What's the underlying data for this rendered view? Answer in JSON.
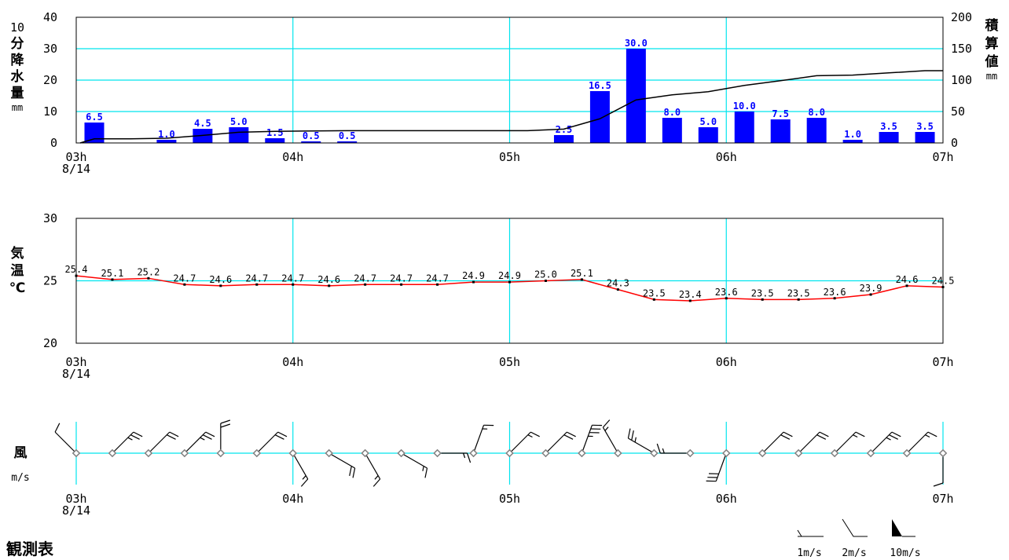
{
  "footer_title": "観測表",
  "chart_data": [
    {
      "type": "bar",
      "ylabel": "10分降水量mm",
      "ylabel_chars": [
        "10",
        "分",
        "降",
        "水",
        "量",
        "mm"
      ],
      "y2label": "積算値mm",
      "y2label_chars": [
        "積",
        "算",
        "値",
        "mm"
      ],
      "ylim": [
        0,
        40
      ],
      "y2lim": [
        0,
        200
      ],
      "yticks": [
        "0",
        "10",
        "20",
        "30",
        "40"
      ],
      "y2ticks": [
        "0",
        "50",
        "100",
        "150",
        "200"
      ],
      "xticks": [
        "03h",
        "04h",
        "05h",
        "06h",
        "07h"
      ],
      "x_date": "8/14",
      "x_minutes": [
        0,
        10,
        20,
        30,
        40,
        50,
        60,
        70,
        80,
        90,
        100,
        110,
        120,
        130,
        140,
        150,
        160,
        170,
        180,
        190,
        200,
        210,
        220,
        230
      ],
      "values": [
        6.5,
        0,
        1.0,
        4.5,
        5.0,
        1.5,
        0.5,
        0.5,
        0,
        0,
        0,
        0,
        0,
        2.5,
        16.5,
        30.0,
        8.0,
        5.0,
        10.0,
        7.5,
        8.0,
        1.0,
        3.5,
        3.5
      ],
      "value_labels": [
        "6.5",
        "",
        "1.0",
        "4.5",
        "5.0",
        "1.5",
        "0.5",
        "0.5",
        "",
        "",
        "",
        "",
        "",
        "2.5",
        "16.5",
        "30.0",
        "8.0",
        "5.0",
        "10.0",
        "7.5",
        "8.0",
        "1.0",
        "3.5",
        "3.5"
      ],
      "cumulative": [
        6.5,
        6.5,
        7.5,
        12.0,
        17.0,
        18.5,
        19.0,
        19.5,
        19.5,
        19.5,
        19.5,
        19.5,
        19.5,
        22.0,
        38.5,
        68.5,
        76.5,
        81.5,
        91.5,
        99.0,
        107.0,
        108.0,
        111.5,
        115.0
      ],
      "colors": {
        "bar": "#0000ff",
        "label": "#0000ff",
        "cumulative": "#000000",
        "grid": "#00e5ee"
      }
    },
    {
      "type": "line",
      "ylabel": "気温℃",
      "ylabel_chars": [
        "気",
        "温",
        "℃"
      ],
      "ylim": [
        20,
        30
      ],
      "yticks": [
        "20",
        "25",
        "30"
      ],
      "xticks": [
        "03h",
        "04h",
        "05h",
        "06h",
        "07h"
      ],
      "x_date": "8/14",
      "x_minutes": [
        0,
        10,
        20,
        30,
        40,
        50,
        60,
        70,
        80,
        90,
        100,
        110,
        120,
        130,
        140,
        150,
        160,
        170,
        180,
        190,
        200,
        210,
        220,
        230,
        240
      ],
      "values": [
        25.4,
        25.1,
        25.2,
        24.7,
        24.6,
        24.7,
        24.7,
        24.6,
        24.7,
        24.7,
        24.7,
        24.9,
        24.9,
        25.0,
        25.1,
        24.3,
        23.5,
        23.4,
        23.6,
        23.5,
        23.5,
        23.6,
        23.9,
        24.6,
        24.5
      ],
      "value_labels": [
        "25.4",
        "25.1",
        "25.2",
        "24.7",
        "24.6",
        "24.7",
        "24.7",
        "24.6",
        "24.7",
        "24.7",
        "24.7",
        "24.9",
        "24.9",
        "25.0",
        "25.1",
        "24.3",
        "23.5",
        "23.4",
        "23.6",
        "23.5",
        "23.5",
        "23.6",
        "23.9",
        "24.6",
        "24.5"
      ],
      "colors": {
        "line": "#ff0000",
        "grid": "#00e5ee"
      }
    },
    {
      "type": "wind",
      "ylabel": "風",
      "unit": "m/s",
      "xticks": [
        "03h",
        "04h",
        "05h",
        "06h",
        "07h"
      ],
      "x_date": "8/14",
      "x_minutes": [
        0,
        10,
        20,
        30,
        40,
        50,
        60,
        70,
        80,
        90,
        100,
        110,
        120,
        130,
        140,
        150,
        160,
        170,
        180,
        190,
        200,
        210,
        220,
        230,
        240
      ],
      "direction_deg": [
        315,
        45,
        45,
        45,
        0,
        45,
        150,
        120,
        150,
        120,
        90,
        20,
        45,
        45,
        20,
        330,
        300,
        270,
        200,
        45,
        45,
        45,
        45,
        45,
        180
      ],
      "speed_ms": [
        2,
        5,
        4,
        5,
        4,
        4,
        3,
        4,
        3,
        3,
        3,
        3,
        3,
        4,
        7,
        3,
        5,
        3,
        6,
        4,
        4,
        3,
        5,
        3,
        2
      ],
      "legend": [
        "1m/s",
        "2m/s",
        "10m/s"
      ],
      "colors": {
        "axis": "#00e5ee",
        "barb": "#000000",
        "station": "#808080"
      }
    }
  ]
}
